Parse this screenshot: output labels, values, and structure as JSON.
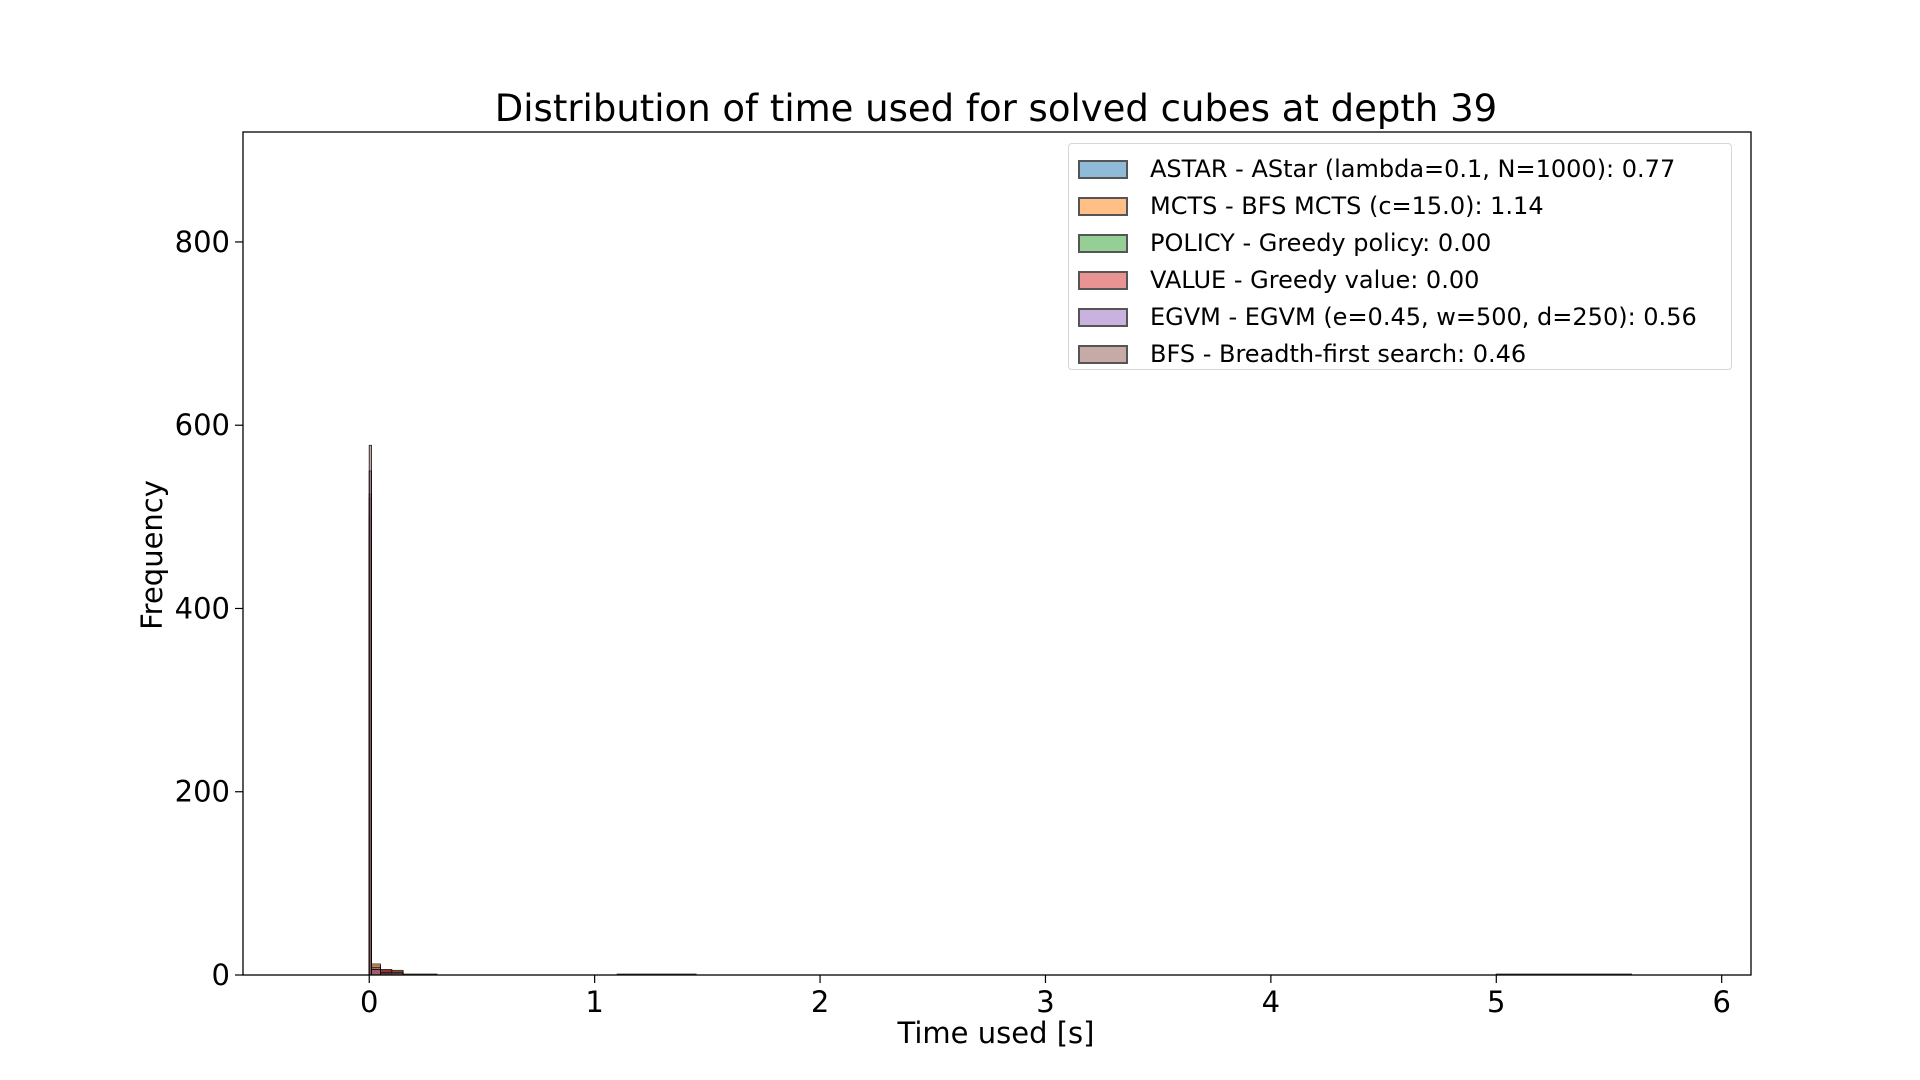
{
  "chart_data": {
    "type": "histogram",
    "title": "Distribution of time used for solved cubes at depth 39",
    "xlabel": "Time used [s]",
    "ylabel": "Frequency",
    "xlim": [
      -0.56,
      6.13
    ],
    "ylim": [
      0,
      920
    ],
    "xticks": [
      "0",
      "1",
      "2",
      "3",
      "4",
      "5",
      "6"
    ],
    "yticks": [
      "0",
      "200",
      "400",
      "600",
      "800"
    ],
    "grid": false,
    "legend_position": "top-right",
    "series": [
      {
        "name": "ASTAR - AStar (lambda=0.1, N=1000): 0.77",
        "color": "#1f77b4",
        "bins": [
          {
            "x0": 0.0,
            "x1": 0.01,
            "count": 500
          },
          {
            "x0": 0.01,
            "x1": 0.05,
            "count": 10
          },
          {
            "x0": 0.05,
            "x1": 0.15,
            "count": 4
          },
          {
            "x0": 1.1,
            "x1": 1.45,
            "count": 1
          }
        ]
      },
      {
        "name": "MCTS - BFS MCTS (c=15.0): 1.14",
        "color": "#ff7f0e",
        "bins": [
          {
            "x0": 0.0,
            "x1": 0.01,
            "count": 480
          },
          {
            "x0": 0.01,
            "x1": 0.05,
            "count": 12
          },
          {
            "x0": 0.05,
            "x1": 0.15,
            "count": 5
          },
          {
            "x0": 0.15,
            "x1": 0.3,
            "count": 1
          }
        ]
      },
      {
        "name": "POLICY - Greedy policy: 0.00",
        "color": "#2ca02c",
        "bins": [
          {
            "x0": 0.0,
            "x1": 0.005,
            "count": 520
          }
        ]
      },
      {
        "name": "VALUE - Greedy value: 0.00",
        "color": "#d62728",
        "bins": [
          {
            "x0": 0.0,
            "x1": 0.005,
            "count": 525
          },
          {
            "x0": 0.01,
            "x1": 0.1,
            "count": 6
          }
        ]
      },
      {
        "name": "EGVM - EGVM (e=0.45, w=500, d=250): 0.56",
        "color": "#9467bd",
        "bins": [
          {
            "x0": 0.0,
            "x1": 0.01,
            "count": 550
          },
          {
            "x0": 0.01,
            "x1": 0.05,
            "count": 8
          },
          {
            "x0": 0.05,
            "x1": 0.15,
            "count": 3
          }
        ]
      },
      {
        "name": "BFS - Breadth-first search: 0.46",
        "color": "#8c564b",
        "bins": [
          {
            "x0": 0.0,
            "x1": 0.01,
            "count": 578
          },
          {
            "x0": 0.01,
            "x1": 0.05,
            "count": 6
          },
          {
            "x0": 0.05,
            "x1": 0.15,
            "count": 2
          },
          {
            "x0": 5.0,
            "x1": 5.6,
            "count": 1
          }
        ]
      }
    ]
  }
}
